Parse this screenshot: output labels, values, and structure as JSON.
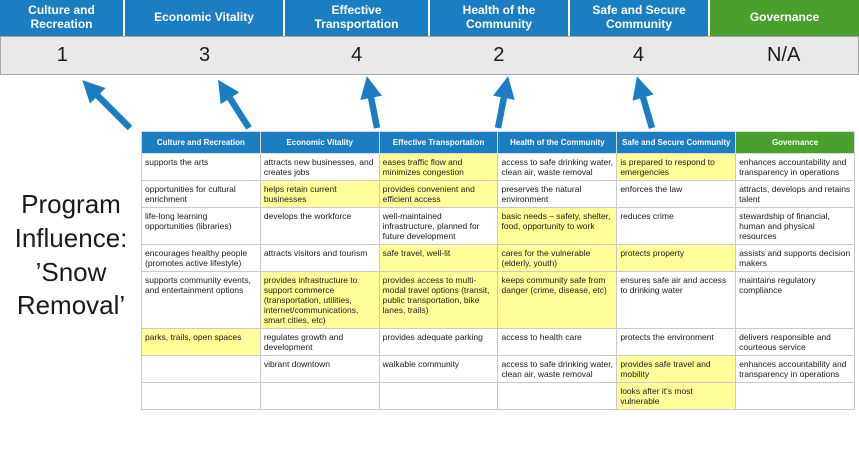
{
  "colors": {
    "blue": "#1b7ec2",
    "green": "#4aa02c",
    "yellow": "#ffff99",
    "score_bg": "#e9e9e9",
    "score_border": "#a6a6a6",
    "grid_border": "#c9c9c9"
  },
  "program_label": "Program\nInfluence:\n’Snow\nRemoval’",
  "scoreboard": {
    "columns": [
      {
        "label": "Culture and Recreation",
        "score": "1",
        "theme": "blue"
      },
      {
        "label": "Economic Vitality",
        "score": "3",
        "theme": "blue"
      },
      {
        "label": "Effective Transportation",
        "score": "4",
        "theme": "blue"
      },
      {
        "label": "Health of the Community",
        "score": "2",
        "theme": "blue"
      },
      {
        "label": "Safe and Secure Community",
        "score": "4",
        "theme": "blue"
      },
      {
        "label": "Governance",
        "score": "N/A",
        "theme": "green"
      }
    ]
  },
  "matrix": {
    "headers": [
      {
        "label": "Culture and Recreation",
        "theme": "blue"
      },
      {
        "label": "Economic Vitality",
        "theme": "blue"
      },
      {
        "label": "Effective Transportation",
        "theme": "blue"
      },
      {
        "label": "Health of the Community",
        "theme": "blue"
      },
      {
        "label": "Safe and Secure Community",
        "theme": "blue"
      },
      {
        "label": "Governance",
        "theme": "green"
      }
    ],
    "rows": [
      [
        {
          "text": "supports the arts",
          "highlight": false
        },
        {
          "text": "attracts new businesses, and creates jobs",
          "highlight": false
        },
        {
          "text": "eases traffic flow and minimizes congestion",
          "highlight": true
        },
        {
          "text": "access to safe drinking water, clean air, waste removal",
          "highlight": false
        },
        {
          "text": "is prepared to respond to emergencies",
          "highlight": true
        },
        {
          "text": "enhances accountability and transparency in operations",
          "highlight": false
        }
      ],
      [
        {
          "text": "opportunities for cultural enrichment",
          "highlight": false
        },
        {
          "text": "helps retain current businesses",
          "highlight": true
        },
        {
          "text": "provides convenient and efficient access",
          "highlight": true
        },
        {
          "text": "preserves the natural environment",
          "highlight": false
        },
        {
          "text": "enforces the law",
          "highlight": false
        },
        {
          "text": "attracts, develops and retains talent",
          "highlight": false
        }
      ],
      [
        {
          "text": "life-long learning opportunities (libraries)",
          "highlight": false
        },
        {
          "text": "develops the workforce",
          "highlight": false
        },
        {
          "text": "well-maintained infrastructure, planned for future development",
          "highlight": false
        },
        {
          "text": "basic needs – safety, shelter, food, opportunity to work",
          "highlight": true
        },
        {
          "text": "reduces crime",
          "highlight": false
        },
        {
          "text": "stewardship of financial, human and physical resources",
          "highlight": false
        }
      ],
      [
        {
          "text": "encourages healthy people (promotes active lifestyle)",
          "highlight": false
        },
        {
          "text": "attracts visitors and tourism",
          "highlight": false
        },
        {
          "text": "safe travel, well-lit",
          "highlight": true
        },
        {
          "text": "cares for the vulnerable (elderly, youth)",
          "highlight": true
        },
        {
          "text": "protects property",
          "highlight": true
        },
        {
          "text": "assists and supports decision makers",
          "highlight": false
        }
      ],
      [
        {
          "text": "supports community events, and entertainment options",
          "highlight": false
        },
        {
          "text": "provides infrastructure to support commerce (transportation, utilities, internet/communications, smart cities, etc)",
          "highlight": true
        },
        {
          "text": "provides access to multi-modal travel options (transit, public transportation, bike lanes, trails)",
          "highlight": true
        },
        {
          "text": "keeps community safe from danger (crime, disease, etc)",
          "highlight": true
        },
        {
          "text": "ensures safe air and access to drinking water",
          "highlight": false
        },
        {
          "text": "maintains regulatory compliance",
          "highlight": false
        }
      ],
      [
        {
          "text": "parks, trails, open spaces",
          "highlight": true
        },
        {
          "text": "regulates growth and development",
          "highlight": false
        },
        {
          "text": "provides adequate parking",
          "highlight": false
        },
        {
          "text": "access to health care",
          "highlight": false
        },
        {
          "text": "protects the environment",
          "highlight": false
        },
        {
          "text": "delivers responsible and courteous service",
          "highlight": false
        }
      ],
      [
        {
          "text": "",
          "highlight": false
        },
        {
          "text": "vibrant downtown",
          "highlight": false
        },
        {
          "text": "walkable community",
          "highlight": false
        },
        {
          "text": "access to safe drinking water, clean air, waste removal",
          "highlight": false
        },
        {
          "text": "provides safe travel and mobility",
          "highlight": true
        },
        {
          "text": "enhances accountability and transparency in operations",
          "highlight": false
        }
      ],
      [
        {
          "text": "",
          "highlight": false
        },
        {
          "text": "",
          "highlight": false
        },
        {
          "text": "",
          "highlight": false
        },
        {
          "text": "",
          "highlight": false
        },
        {
          "text": "looks after it's most vulnerable",
          "highlight": true
        },
        {
          "text": "",
          "highlight": false
        }
      ]
    ]
  }
}
